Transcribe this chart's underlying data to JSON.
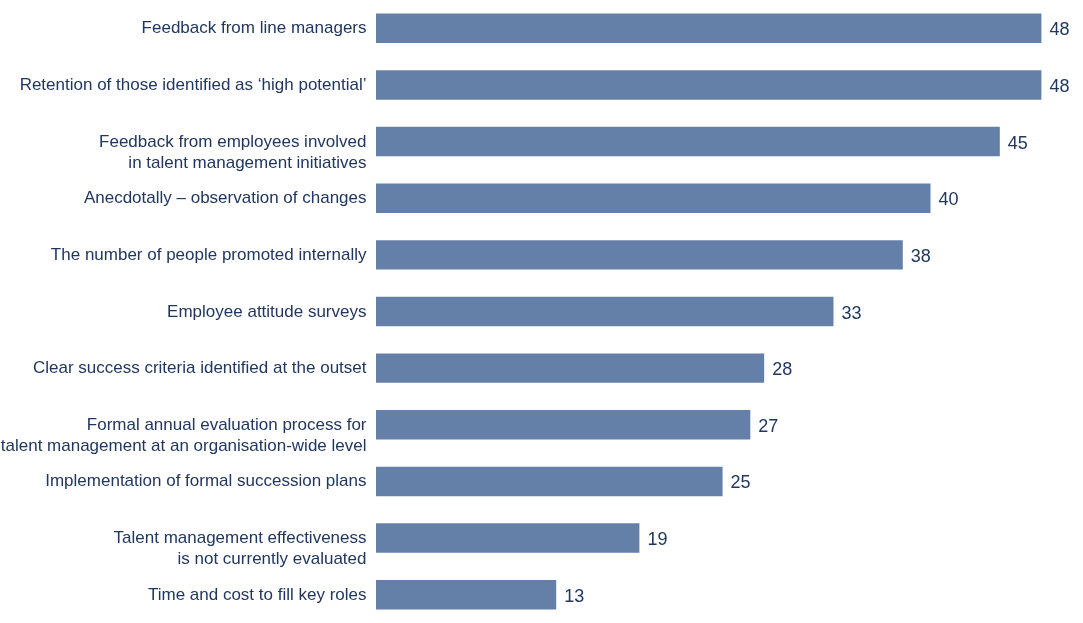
{
  "chart_data": {
    "type": "bar",
    "orientation": "horizontal",
    "categories": [
      "Feedback from line managers",
      "Retention of those identified as ‘high potential’",
      "Feedback from employees involved\nin talent management initiatives",
      "Anecdotally – observation of changes",
      "The number of people promoted internally",
      "Employee attitude surveys",
      "Clear success criteria identified at the outset",
      "Formal annual evaluation process for\ntalent management at an organisation-wide level",
      "Implementation of formal succession plans",
      "Talent management effectiveness\nis not currently evaluated",
      "Time and cost to fill key roles"
    ],
    "values": [
      48,
      48,
      45,
      40,
      38,
      33,
      28,
      27,
      25,
      19,
      13
    ],
    "color": "#6480a8",
    "data_labels": true,
    "xlim": [
      0,
      51
    ],
    "tick_labels": "y",
    "grid": false
  }
}
